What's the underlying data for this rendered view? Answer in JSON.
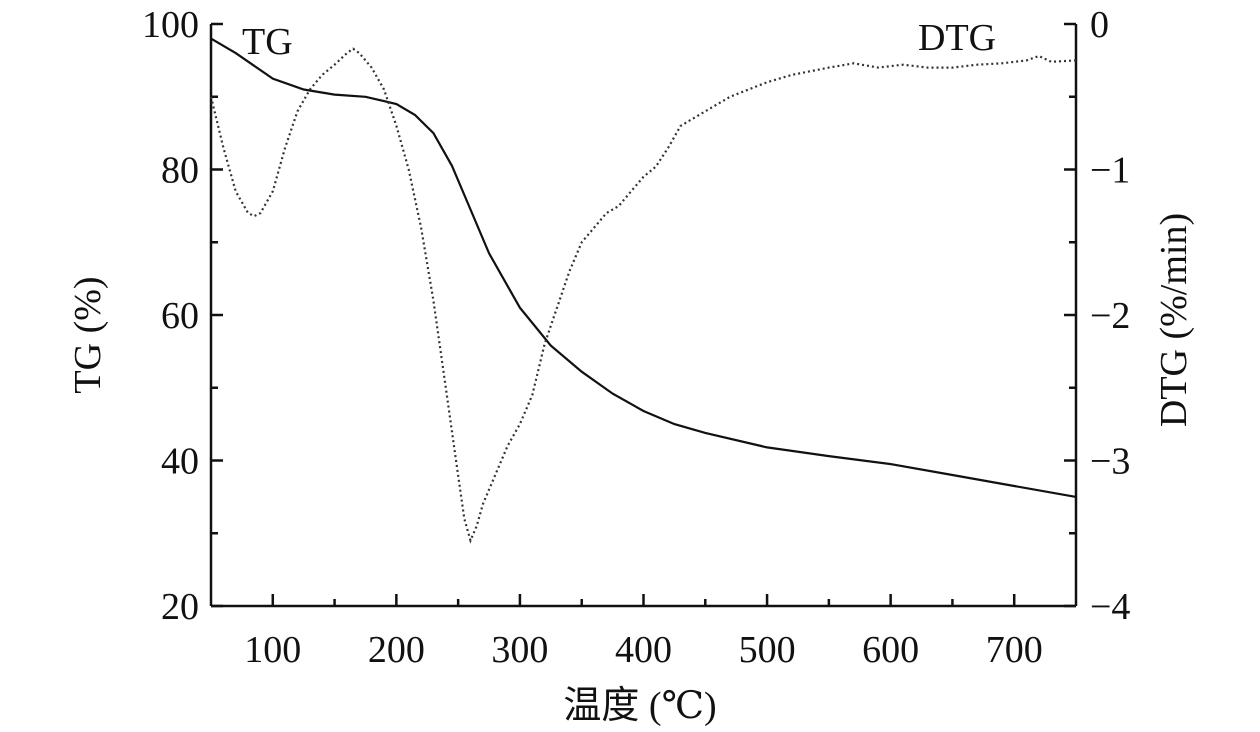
{
  "chart_data": {
    "type": "line",
    "xlabel": "温度 (℃)",
    "ylabel_left": "TG (%)",
    "ylabel_right": "DTG (%/min)",
    "xlim": [
      50,
      750
    ],
    "ylim_left": [
      20,
      100
    ],
    "ylim_right": [
      -4,
      0
    ],
    "x_ticks": [
      100,
      200,
      300,
      400,
      500,
      600,
      700
    ],
    "y_left_ticks": [
      20,
      40,
      60,
      80,
      100
    ],
    "y_right_ticks": [
      -4,
      -3,
      -2,
      -1,
      0
    ],
    "y_right_tick_labels": [
      "−4",
      "−3",
      "−2",
      "−1",
      "0"
    ],
    "grid": false,
    "series": [
      {
        "name": "TG",
        "axis": "left",
        "style": "solid",
        "x": [
          50,
          70,
          100,
          125,
          150,
          175,
          200,
          215,
          230,
          245,
          260,
          275,
          300,
          325,
          350,
          375,
          400,
          425,
          450,
          500,
          550,
          600,
          650,
          700,
          750
        ],
        "y": [
          98,
          96,
          92.5,
          91,
          90.3,
          90,
          89,
          87.5,
          85,
          80.5,
          74.5,
          68.5,
          61,
          55.8,
          52.2,
          49.2,
          46.8,
          45,
          43.8,
          41.8,
          40.6,
          39.5,
          38,
          36.5,
          35
        ]
      },
      {
        "name": "DTG",
        "axis": "right",
        "style": "dotted",
        "x": [
          50,
          60,
          70,
          80,
          85,
          90,
          100,
          110,
          120,
          130,
          140,
          150,
          160,
          165,
          170,
          180,
          190,
          200,
          210,
          220,
          230,
          240,
          250,
          255,
          260,
          265,
          270,
          280,
          290,
          300,
          310,
          320,
          330,
          340,
          350,
          360,
          370,
          380,
          390,
          400,
          410,
          420,
          430,
          450,
          470,
          500,
          520,
          550,
          570,
          590,
          610,
          630,
          650,
          670,
          690,
          710,
          720,
          730,
          750
        ],
        "y": [
          -0.5,
          -0.85,
          -1.15,
          -1.3,
          -1.32,
          -1.3,
          -1.15,
          -0.85,
          -0.6,
          -0.45,
          -0.35,
          -0.28,
          -0.2,
          -0.17,
          -0.2,
          -0.3,
          -0.45,
          -0.7,
          -1.0,
          -1.4,
          -1.9,
          -2.5,
          -3.1,
          -3.4,
          -3.55,
          -3.45,
          -3.3,
          -3.1,
          -2.9,
          -2.75,
          -2.55,
          -2.2,
          -1.95,
          -1.7,
          -1.5,
          -1.4,
          -1.3,
          -1.25,
          -1.15,
          -1.05,
          -0.98,
          -0.85,
          -0.7,
          -0.6,
          -0.5,
          -0.4,
          -0.35,
          -0.3,
          -0.27,
          -0.3,
          -0.28,
          -0.3,
          -0.3,
          -0.28,
          -0.27,
          -0.25,
          -0.22,
          -0.26,
          -0.25
        ]
      }
    ],
    "series_labels": [
      "TG",
      "DTG"
    ]
  }
}
